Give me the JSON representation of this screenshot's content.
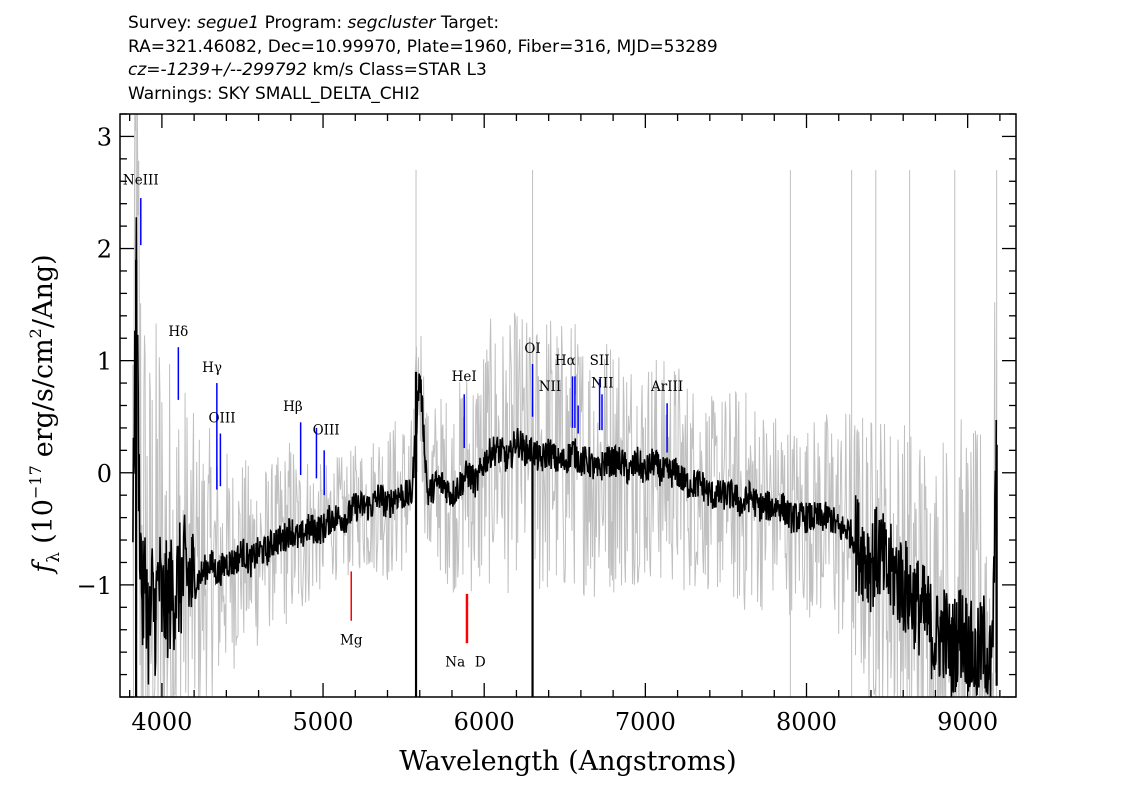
{
  "header": {
    "line1": {
      "survey_label": "Survey:",
      "survey": "segue1",
      "program_label": "Program:",
      "program": "segcluster",
      "target_label": "Target:"
    },
    "line2": "RA=321.46082, Dec=10.99970, Plate=1960, Fiber=316, MJD=53289",
    "line3": {
      "cz_label": "cz=",
      "cz": "-1239+/--299792",
      "rest": "km/s Class=STAR L3"
    },
    "line4": "Warnings: SKY SMALL_DELTA_CHI2"
  },
  "chart_data": {
    "type": "line",
    "xlabel": "Wavelength (Angstroms)",
    "ylabel_parts": {
      "f": "f",
      "sub": "λ",
      "a": "(10",
      "exp": "−17",
      "b": "erg/s/cm",
      "sq": "2",
      "c": "/Ang)"
    },
    "xlim": [
      3740,
      9300
    ],
    "ylim": [
      -2.0,
      3.2
    ],
    "xticks": [
      4000,
      5000,
      6000,
      7000,
      8000,
      9000
    ],
    "yticks": [
      -1,
      0,
      1,
      2,
      3
    ],
    "ytick_labels": [
      "−1",
      "0",
      "1",
      "2",
      "3"
    ],
    "colors": {
      "flux": "#000000",
      "error": "#c0c0c0",
      "emission": "#0000ff",
      "absorption": "#ff0000"
    },
    "series": [
      {
        "role": "flux",
        "x": [
          3820,
          3840,
          3860,
          3880,
          3900,
          3920,
          3940,
          3960,
          3980,
          4000,
          4050,
          4100,
          4150,
          4200,
          4250,
          4300,
          4350,
          4400,
          4450,
          4500,
          4550,
          4600,
          4650,
          4700,
          4750,
          4800,
          4850,
          4900,
          4950,
          5000,
          5050,
          5100,
          5150,
          5200,
          5250,
          5300,
          5350,
          5400,
          5450,
          5500,
          5550,
          5600,
          5650,
          5700,
          5750,
          5800,
          5850,
          5900,
          5950,
          6000,
          6050,
          6100,
          6150,
          6200,
          6250,
          6300,
          6350,
          6400,
          6450,
          6500,
          6550,
          6600,
          6650,
          6700,
          6750,
          6800,
          6850,
          6900,
          6950,
          7000,
          7050,
          7100,
          7150,
          7200,
          7250,
          7300,
          7350,
          7400,
          7450,
          7500,
          7550,
          7600,
          7650,
          7700,
          7750,
          7800,
          7850,
          7900,
          7950,
          8000,
          8050,
          8100,
          8150,
          8200,
          8250,
          8300,
          8350,
          8400,
          8450,
          8500,
          8550,
          8600,
          8650,
          8700,
          8750,
          8800,
          8850,
          8900,
          8950,
          9000,
          9050,
          9100,
          9150,
          9180
        ],
        "y": [
          -0.6,
          1.9,
          -0.3,
          -1.2,
          -0.9,
          -1.5,
          -1.1,
          -1.3,
          -0.9,
          -1.2,
          -1.1,
          -1.0,
          -0.9,
          -1.0,
          -0.9,
          -0.8,
          -0.9,
          -0.8,
          -0.8,
          -0.7,
          -0.8,
          -0.7,
          -0.7,
          -0.6,
          -0.6,
          -0.5,
          -0.6,
          -0.5,
          -0.5,
          -0.5,
          -0.4,
          -0.4,
          -0.4,
          -0.3,
          -0.3,
          -0.3,
          -0.2,
          -0.3,
          -0.2,
          -0.2,
          -0.2,
          0.9,
          -0.2,
          -0.1,
          -0.1,
          -0.2,
          -0.1,
          0.0,
          -0.1,
          0.1,
          0.2,
          0.2,
          0.1,
          0.3,
          0.2,
          0.2,
          0.1,
          0.2,
          0.1,
          0.1,
          0.2,
          0.1,
          0.1,
          0.0,
          0.1,
          0.1,
          0.1,
          0.0,
          0.1,
          0.0,
          0.1,
          0.0,
          0.0,
          0.0,
          -0.1,
          -0.1,
          -0.1,
          -0.2,
          -0.2,
          -0.2,
          -0.2,
          -0.3,
          -0.2,
          -0.3,
          -0.3,
          -0.3,
          -0.3,
          -0.4,
          -0.4,
          -0.4,
          -0.4,
          -0.4,
          -0.4,
          -0.5,
          -0.5,
          -0.6,
          -0.7,
          -0.8,
          -0.7,
          -0.9,
          -0.9,
          -1.0,
          -1.1,
          -1.2,
          -1.3,
          -1.5,
          -1.4,
          -1.6,
          -1.4,
          -1.5,
          -1.7,
          -1.5,
          -1.8,
          0.2
        ]
      },
      {
        "role": "noise-envelope",
        "x": [
          3820,
          3900,
          4000,
          4100,
          4200,
          4300,
          4400,
          4500,
          4600,
          4700,
          4800,
          4900,
          5000,
          5200,
          5400,
          5600,
          5800,
          6000,
          6200,
          6400,
          6600,
          6800,
          7000,
          7200,
          7400,
          7600,
          7800,
          8000,
          8200,
          8400,
          8600,
          8800,
          9000,
          9180
        ],
        "y": [
          2.8,
          1.4,
          1.3,
          0.9,
          0.6,
          0.4,
          0.3,
          0.2,
          0.2,
          0.1,
          0.2,
          0.1,
          0.0,
          0.0,
          0.1,
          0.1,
          0.2,
          0.4,
          0.4,
          0.5,
          0.4,
          0.4,
          0.3,
          0.3,
          0.2,
          0.3,
          0.2,
          0.2,
          0.3,
          0.5,
          0.6,
          0.8,
          0.9,
          1.1
        ]
      }
    ],
    "line_marks": [
      {
        "label": "NeIII",
        "x": 3869,
        "y0": 2.03,
        "y1": 2.45,
        "kind": "emission",
        "ly": 2.57,
        "dx": 0
      },
      {
        "label": "Hδ",
        "x": 4102,
        "y0": 0.65,
        "y1": 1.12,
        "kind": "emission",
        "ly": 1.22,
        "dx": 0
      },
      {
        "label": "Hγ",
        "x": 4341,
        "y0": -0.15,
        "y1": 0.8,
        "kind": "emission",
        "ly": 0.9,
        "dx": -30
      },
      {
        "label": "OIII",
        "x": 4363,
        "y0": -0.12,
        "y1": 0.35,
        "kind": "emission",
        "ly": 0.45,
        "dx": 10
      },
      {
        "label": "Hβ",
        "x": 4861,
        "y0": -0.02,
        "y1": 0.45,
        "kind": "emission",
        "ly": 0.55,
        "dx": -48
      },
      {
        "label": "OIII",
        "x": 4959,
        "y0": -0.05,
        "y1": 0.4,
        "kind": "emission",
        "ly": 0.34,
        "dx": 60
      },
      {
        "label": "OIII",
        "x": 5007,
        "y0": -0.2,
        "y1": 0.2,
        "kind": "emission",
        "ly": -0.01,
        "dx": 0,
        "hidden_label": true
      },
      {
        "label": "Mg",
        "x": 5175,
        "y0": -1.32,
        "y1": -0.88,
        "kind": "absorption",
        "ly": -1.53,
        "dx": 0
      },
      {
        "label": "HeI",
        "x": 5876,
        "y0": 0.22,
        "y1": 0.7,
        "kind": "emission",
        "ly": 0.82,
        "dx": 0
      },
      {
        "label": "Na",
        "x": 5890,
        "y0": -1.52,
        "y1": -1.08,
        "kind": "absorption",
        "ly": -1.73,
        "dx": -70
      },
      {
        "label": "D",
        "x": 5896,
        "y0": -1.52,
        "y1": -1.08,
        "kind": "absorption",
        "ly": -1.73,
        "dx": 80
      },
      {
        "label": "OI",
        "x": 6300,
        "y0": 0.5,
        "y1": 0.97,
        "kind": "emission",
        "ly": 1.07,
        "dx": 0
      },
      {
        "label": "NII",
        "x": 6548,
        "y0": 0.4,
        "y1": 0.86,
        "kind": "emission",
        "ly": 0.73,
        "dx": -140
      },
      {
        "label": "Hα",
        "x": 6563,
        "y0": 0.4,
        "y1": 0.86,
        "kind": "emission",
        "ly": 0.96,
        "dx": -60
      },
      {
        "label": "NII",
        "x": 6583,
        "y0": 0.35,
        "y1": 0.6,
        "kind": "emission",
        "ly": 0.76,
        "dx": 150
      },
      {
        "label": "SII",
        "x": 6716,
        "y0": 0.38,
        "y1": 0.84,
        "kind": "emission",
        "ly": 0.96,
        "dx": 0
      },
      {
        "label": "SII",
        "x": 6731,
        "y0": 0.38,
        "y1": 0.7,
        "kind": "emission",
        "ly": 0.6,
        "dx": 0,
        "hidden_label": true
      },
      {
        "label": "ArIII",
        "x": 7135,
        "y0": 0.18,
        "y1": 0.62,
        "kind": "emission",
        "ly": 0.73,
        "dx": 0
      }
    ]
  }
}
